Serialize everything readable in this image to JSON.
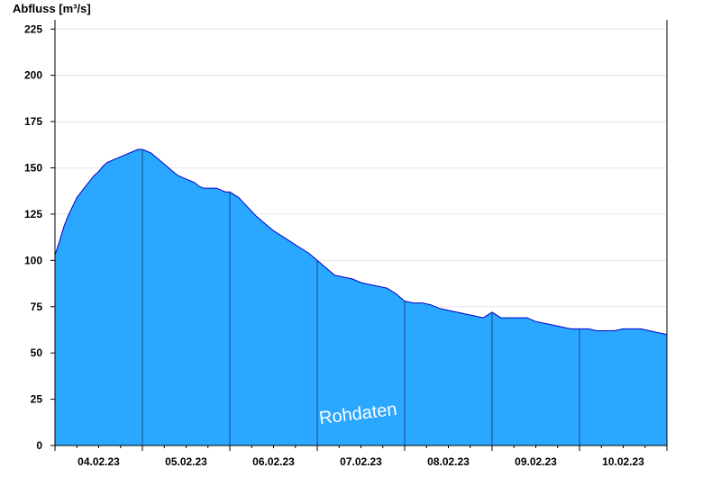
{
  "chart_data": {
    "type": "area",
    "ylabel": "Abfluss [m³/s]",
    "xlabel": "",
    "watermark": "Rohdaten",
    "ylim": [
      0,
      230
    ],
    "yticks": [
      0,
      25,
      50,
      75,
      100,
      125,
      150,
      175,
      200,
      225
    ],
    "xlim": [
      0,
      7
    ],
    "day_labels": [
      "04.02.23",
      "05.02.23",
      "06.02.23",
      "07.02.23",
      "08.02.23",
      "09.02.23",
      "10.02.23"
    ],
    "grid": "horizontal",
    "colors": {
      "fill": "#2aa7ff",
      "line": "#0000cc",
      "grid": "#e6e6e6",
      "day_divider": "#1a4a88"
    },
    "series": [
      {
        "x": [
          0,
          0.05,
          0.1,
          0.15,
          0.2,
          0.25,
          0.3,
          0.35,
          0.4,
          0.45,
          0.5,
          0.55,
          0.6,
          0.65,
          0.7,
          0.75,
          0.8,
          0.85,
          0.9,
          0.95,
          1.0,
          1.05,
          1.1,
          1.15,
          1.2,
          1.25,
          1.3,
          1.35,
          1.4,
          1.45,
          1.5,
          1.55,
          1.6,
          1.65,
          1.7,
          1.75,
          1.8,
          1.85,
          1.9,
          1.95,
          2.0,
          2.1,
          2.2,
          2.3,
          2.4,
          2.5,
          2.6,
          2.7,
          2.8,
          2.9,
          3.0,
          3.1,
          3.2,
          3.3,
          3.4,
          3.5,
          3.6,
          3.7,
          3.8,
          3.9,
          4.0,
          4.1,
          4.2,
          4.3,
          4.4,
          4.5,
          4.6,
          4.7,
          4.8,
          4.9,
          5.0,
          5.1,
          5.2,
          5.3,
          5.4,
          5.45,
          5.5,
          5.6,
          5.7,
          5.8,
          5.9,
          6.0,
          6.1,
          6.2,
          6.3,
          6.4,
          6.5,
          6.6,
          6.7,
          6.8,
          6.9,
          7.0
        ],
        "y": [
          103,
          110,
          118,
          124,
          129,
          134,
          137,
          140,
          143,
          146,
          148,
          151,
          153,
          154,
          155,
          156,
          157,
          158,
          159,
          160,
          160,
          159,
          158,
          156,
          154,
          152,
          150,
          148,
          146,
          145,
          144,
          143,
          142,
          140,
          139,
          139,
          139,
          139,
          138,
          137,
          137,
          134,
          129,
          124,
          120,
          116,
          113,
          110,
          107,
          104,
          100,
          96,
          92,
          91,
          90,
          88,
          87,
          86,
          85,
          82,
          78,
          77,
          77,
          76,
          74,
          73,
          72,
          71,
          70,
          69,
          72,
          69,
          69,
          69,
          69,
          68,
          67,
          66,
          65,
          64,
          63,
          63,
          63,
          62,
          62,
          62,
          63,
          63,
          63,
          62,
          61,
          60
        ]
      }
    ]
  }
}
